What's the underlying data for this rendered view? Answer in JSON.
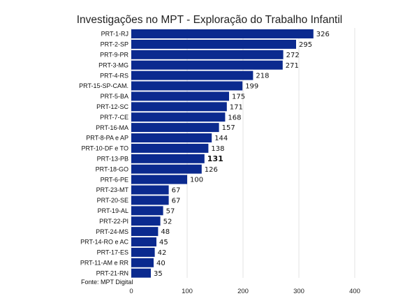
{
  "chart_data": {
    "type": "bar",
    "orientation": "horizontal",
    "title": "Investigações no MPT - Exploração do Trabalho Infantil",
    "categories": [
      "PRT-1-RJ",
      "PRT-2-SP",
      "PRT-9-PR",
      "PRT-3-MG",
      "PRT-4-RS",
      "PRT-15-SP-CAM.",
      "PRT-5-BA",
      "PRT-12-SC",
      "PRT-7-CE",
      "PRT-16-MA",
      "PRT-8-PA e AP",
      "PRT-10-DF e TO",
      "PRT-13-PB",
      "PRT-18-GO",
      "PRT-6-PE",
      "PRT-23-MT",
      "PRT-20-SE",
      "PRT-19-AL",
      "PRT-22-PI",
      "PRT-24-MS",
      "PRT-14-RO e AC",
      "PRT-17-ES",
      "PRT-11-AM e RR",
      "PRT-21-RN"
    ],
    "values": [
      326,
      295,
      272,
      271,
      218,
      199,
      175,
      171,
      168,
      157,
      144,
      138,
      131,
      126,
      100,
      67,
      67,
      57,
      52,
      48,
      45,
      42,
      40,
      35
    ],
    "highlighted_category": "PRT-13-PB",
    "bar_color": "#0b2a8f",
    "xlim": [
      0,
      400
    ],
    "xticks": [
      "0",
      "100",
      "200",
      "300",
      "400"
    ],
    "grid": true,
    "source": "Fonte: MPT Digital"
  }
}
